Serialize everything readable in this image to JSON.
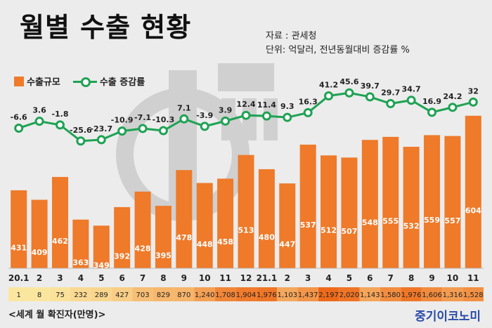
{
  "title": "월별 수출 현황",
  "source": {
    "line1": "자료 : 관세청",
    "line2": "단위: 억달러, 전년동월대비 증감률 %"
  },
  "legend": {
    "bar_label": "수출규모",
    "line_label": "수출 증감률"
  },
  "footer": {
    "covid_label": "<세계 월 확진자(만명)>",
    "brand": "중기이코노미"
  },
  "colors": {
    "bar": "#ee7a2a",
    "line": "#1fa254",
    "marker_fill": "#ffffff",
    "covid_low": "#fbe6a0",
    "covid_high": "#ee6a1a"
  },
  "chart_data": {
    "type": "bar",
    "categories": [
      "20.1",
      "2",
      "3",
      "4",
      "5",
      "6",
      "7",
      "8",
      "9",
      "10",
      "11",
      "12",
      "21.1",
      "2",
      "3",
      "4",
      "5",
      "6",
      "7",
      "8",
      "9",
      "10",
      "11"
    ],
    "series": [
      {
        "name": "수출규모",
        "type": "bar",
        "values": [
          431,
          409,
          462,
          363,
          349,
          392,
          428,
          395,
          478,
          448,
          458,
          513,
          480,
          447,
          537,
          512,
          507,
          548,
          555,
          532,
          559,
          557,
          604
        ]
      },
      {
        "name": "수출 증감률",
        "type": "line",
        "values": [
          -6.6,
          3.6,
          -1.8,
          -25.6,
          -23.7,
          -10.9,
          -7.1,
          -10.3,
          7.1,
          -3.9,
          3.9,
          12.4,
          11.4,
          9.3,
          16.3,
          41.2,
          45.6,
          39.7,
          29.7,
          34.7,
          16.9,
          24.2,
          32
        ]
      }
    ],
    "covid_row": {
      "label": "<세계 월 확진자(만명)>",
      "values": [
        "1",
        "8",
        "75",
        "232",
        "289",
        "427",
        "703",
        "829",
        "870",
        "1,240",
        "1,708",
        "1,904",
        "1,976",
        "1,103",
        "1,437",
        "2,197",
        "2,020",
        "1,143",
        "1,580",
        "1,976",
        "1,606",
        "1,316",
        "1,528"
      ]
    },
    "bar_range": [
      250,
      620
    ],
    "line_range": [
      -30,
      50
    ],
    "grid": false,
    "legend_position": "top-left"
  }
}
